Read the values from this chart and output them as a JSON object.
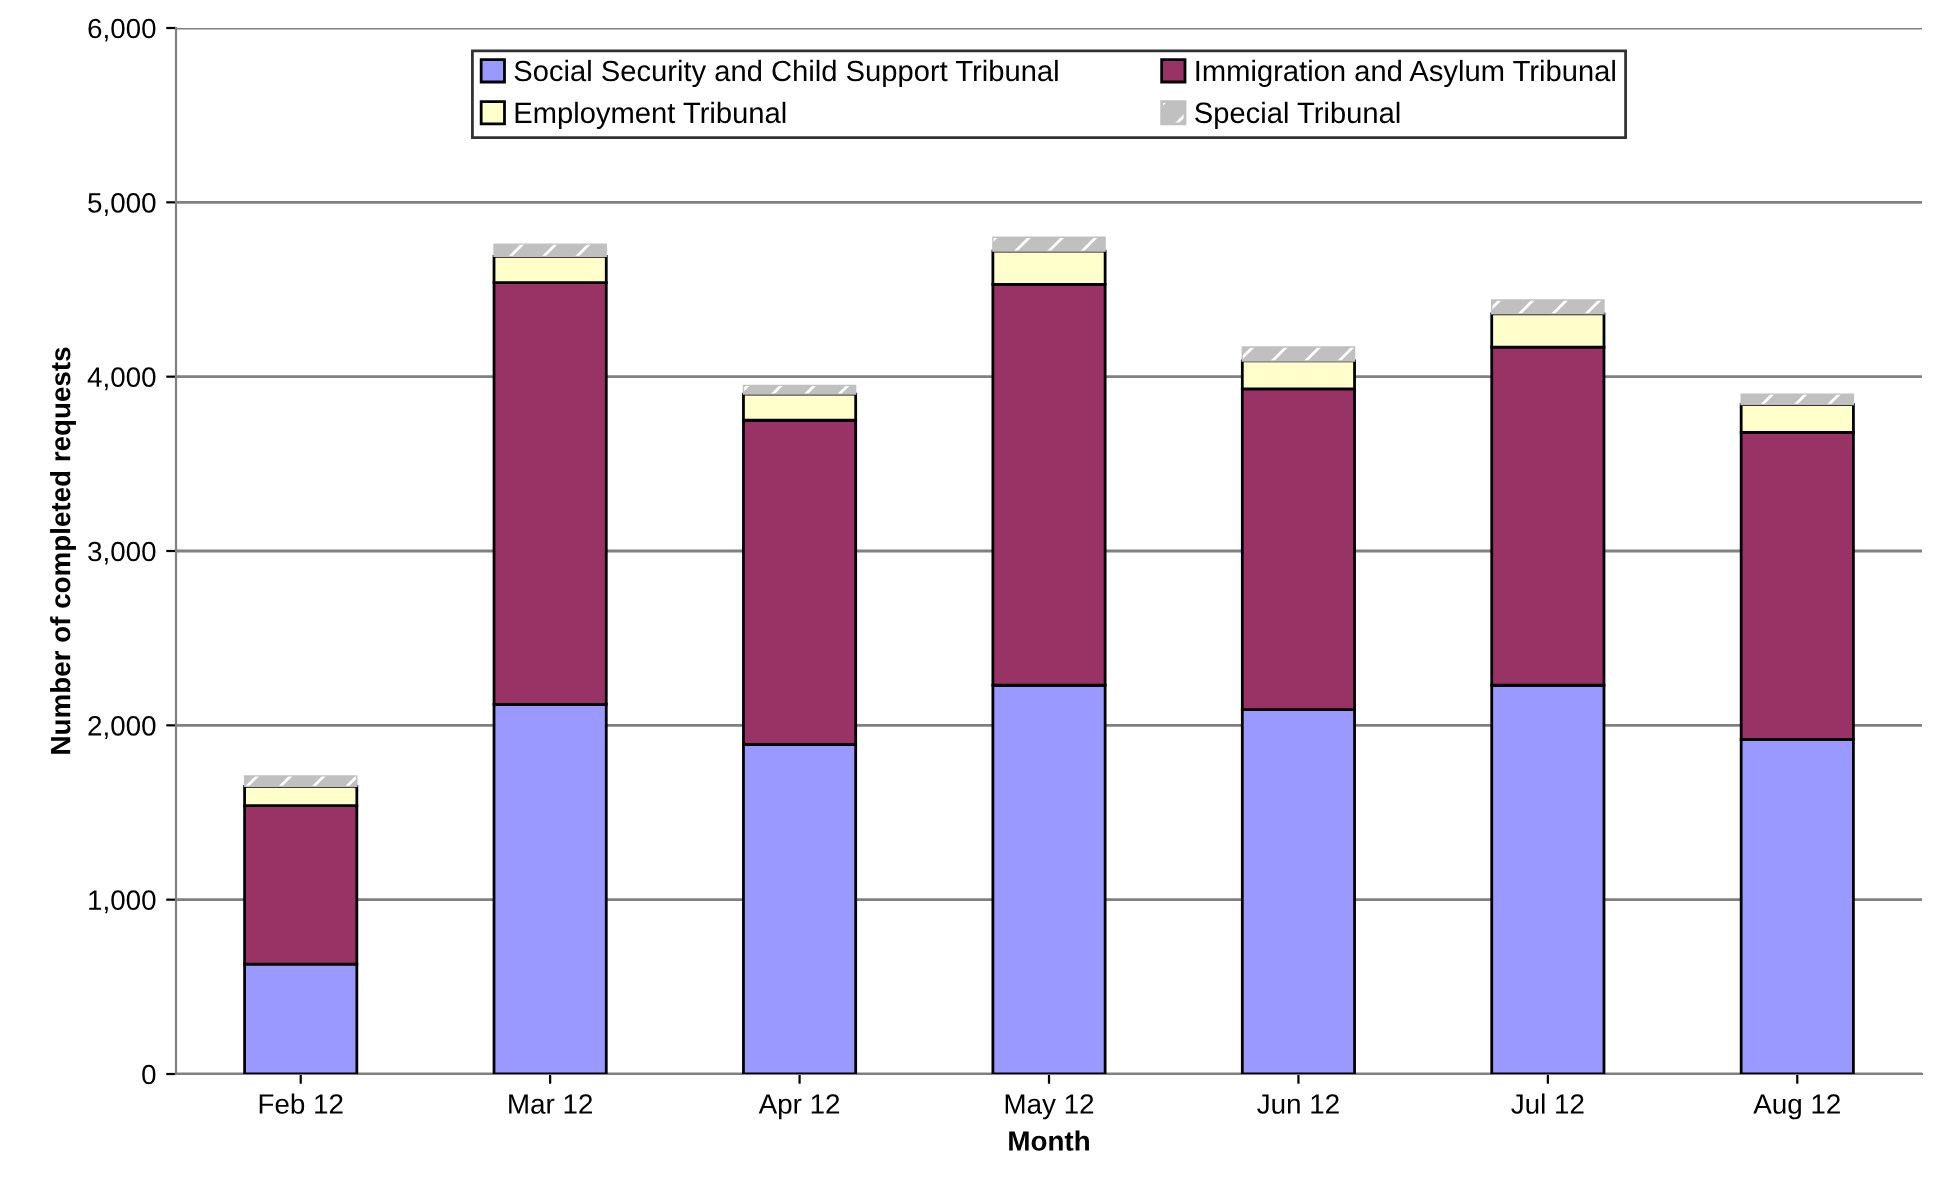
{
  "chart_data": {
    "type": "bar",
    "stacked": true,
    "xlabel": "Month",
    "ylabel": "Number of completed requests",
    "categories": [
      "Feb 12",
      "Mar 12",
      "Apr 12",
      "May 12",
      "Jun 12",
      "Jul 12",
      "Aug 12"
    ],
    "series": [
      {
        "name": "Social Security and Child Support Tribunal",
        "color": "#9999ff",
        "values": [
          630,
          2120,
          1890,
          2230,
          2090,
          2230,
          1920
        ]
      },
      {
        "name": "Immigration and Asylum Tribunal",
        "color": "#993366",
        "values": [
          910,
          2420,
          1860,
          2300,
          1840,
          1940,
          1760
        ]
      },
      {
        "name": "Employment Tribunal",
        "color": "#ffffcc",
        "values": [
          110,
          150,
          150,
          190,
          160,
          190,
          160
        ]
      },
      {
        "name": "Special Tribunal",
        "color": "#c0c0c0",
        "values": [
          60,
          70,
          50,
          80,
          80,
          80,
          60
        ]
      }
    ],
    "ylim": [
      0,
      6000
    ],
    "yticks": [
      {
        "value": 0,
        "label": "0"
      },
      {
        "value": 1000,
        "label": "1,000"
      },
      {
        "value": 2000,
        "label": "2,000"
      },
      {
        "value": 3000,
        "label": "3,000"
      },
      {
        "value": 4000,
        "label": "4,000"
      },
      {
        "value": 5000,
        "label": "5,000"
      },
      {
        "value": 6000,
        "label": "6,000"
      }
    ],
    "grid": "y",
    "legend": "top"
  }
}
